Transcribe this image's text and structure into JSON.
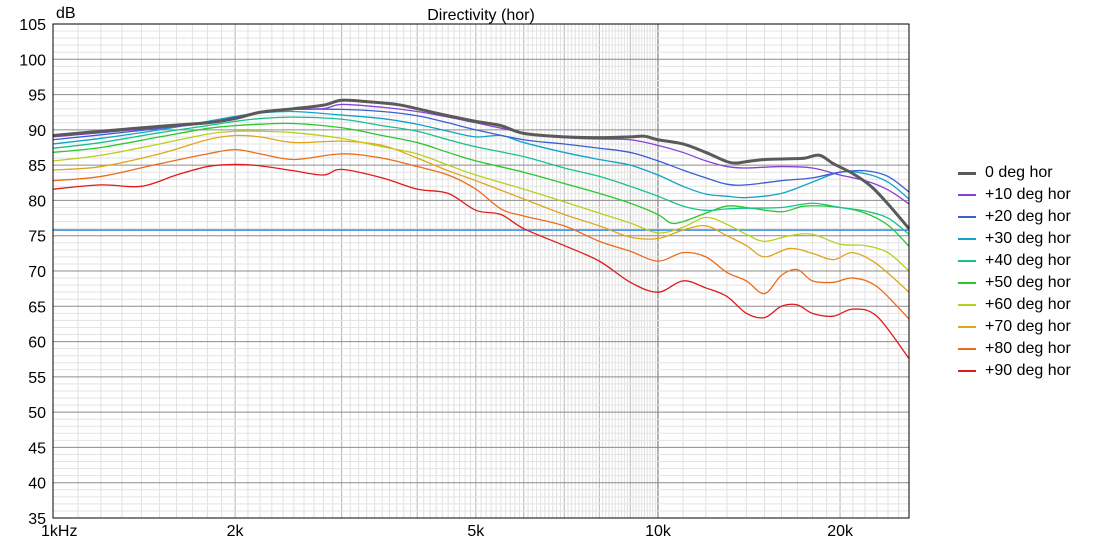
{
  "chart_data": {
    "type": "line",
    "title": "Directivity (hor)",
    "ylabel": "dB",
    "xscale": "log",
    "xlim": [
      1000,
      26000
    ],
    "ylim": [
      35,
      105
    ],
    "yticks": [
      35,
      40,
      45,
      50,
      55,
      60,
      65,
      70,
      75,
      80,
      85,
      90,
      95,
      100,
      105
    ],
    "xtick_labels": [
      {
        "value": 1000,
        "label": "1kHz"
      },
      {
        "value": 2000,
        "label": "2k"
      },
      {
        "value": 5000,
        "label": "5k"
      },
      {
        "value": 10000,
        "label": "10k"
      },
      {
        "value": 20000,
        "label": "20k"
      }
    ],
    "grid": true,
    "legend_position": "right",
    "reference_line": {
      "y": 75.8,
      "color": "#1f7fd6"
    },
    "series": [
      {
        "name": "0 deg hor",
        "color": "#5a5a5a",
        "width": 3,
        "points": [
          [
            1000,
            89.2
          ],
          [
            1200,
            89.8
          ],
          [
            1500,
            90.5
          ],
          [
            1800,
            91.0
          ],
          [
            2000,
            91.6
          ],
          [
            2200,
            92.5
          ],
          [
            2500,
            93.0
          ],
          [
            2800,
            93.5
          ],
          [
            3000,
            94.2
          ],
          [
            3300,
            94.0
          ],
          [
            3700,
            93.6
          ],
          [
            4000,
            93.0
          ],
          [
            4500,
            92.0
          ],
          [
            5000,
            91.2
          ],
          [
            5500,
            90.6
          ],
          [
            6000,
            89.5
          ],
          [
            7000,
            89.0
          ],
          [
            8000,
            88.9
          ],
          [
            9000,
            89.0
          ],
          [
            9500,
            89.1
          ],
          [
            10000,
            88.6
          ],
          [
            11000,
            88.0
          ],
          [
            12000,
            86.8
          ],
          [
            13000,
            85.5
          ],
          [
            13500,
            85.3
          ],
          [
            14000,
            85.5
          ],
          [
            15000,
            85.8
          ],
          [
            16500,
            85.9
          ],
          [
            17500,
            86.0
          ],
          [
            18500,
            86.4
          ],
          [
            19500,
            85.2
          ],
          [
            21000,
            83.8
          ],
          [
            22500,
            82.0
          ],
          [
            24000,
            79.5
          ],
          [
            26000,
            76.0
          ]
        ]
      },
      {
        "name": "+10 deg hor",
        "color": "#8b3fd6",
        "width": 1.3,
        "points": [
          [
            1000,
            89.0
          ],
          [
            1200,
            89.6
          ],
          [
            1500,
            90.3
          ],
          [
            1800,
            90.9
          ],
          [
            2000,
            91.5
          ],
          [
            2200,
            92.4
          ],
          [
            2500,
            92.9
          ],
          [
            2800,
            93.0
          ],
          [
            3000,
            93.6
          ],
          [
            3500,
            93.2
          ],
          [
            4000,
            92.6
          ],
          [
            4500,
            91.8
          ],
          [
            5000,
            91.0
          ],
          [
            6000,
            89.6
          ],
          [
            7000,
            88.9
          ],
          [
            8000,
            88.7
          ],
          [
            9000,
            88.6
          ],
          [
            10000,
            87.8
          ],
          [
            11000,
            86.8
          ],
          [
            12000,
            85.6
          ],
          [
            13000,
            84.8
          ],
          [
            14000,
            84.6
          ],
          [
            16000,
            84.8
          ],
          [
            18000,
            84.6
          ],
          [
            20000,
            83.6
          ],
          [
            22000,
            82.8
          ],
          [
            24000,
            81.5
          ],
          [
            26000,
            79.5
          ]
        ]
      },
      {
        "name": "+20 deg hor",
        "color": "#3a5fd0",
        "width": 1.3,
        "points": [
          [
            1000,
            88.6
          ],
          [
            1200,
            89.3
          ],
          [
            1500,
            90.2
          ],
          [
            1800,
            91.0
          ],
          [
            2000,
            91.8
          ],
          [
            2200,
            92.5
          ],
          [
            2500,
            92.9
          ],
          [
            3000,
            92.9
          ],
          [
            3500,
            92.6
          ],
          [
            4000,
            92.0
          ],
          [
            4500,
            91.0
          ],
          [
            5000,
            90.0
          ],
          [
            6000,
            88.6
          ],
          [
            7000,
            88.0
          ],
          [
            8000,
            87.4
          ],
          [
            9000,
            86.8
          ],
          [
            10000,
            85.6
          ],
          [
            11000,
            84.3
          ],
          [
            12000,
            83.2
          ],
          [
            13000,
            82.3
          ],
          [
            14000,
            82.2
          ],
          [
            16000,
            82.8
          ],
          [
            18000,
            83.2
          ],
          [
            20000,
            84.0
          ],
          [
            22000,
            84.2
          ],
          [
            24000,
            83.4
          ],
          [
            26000,
            81.2
          ]
        ]
      },
      {
        "name": "+30 deg hor",
        "color": "#11a3c9",
        "width": 1.3,
        "points": [
          [
            1000,
            88.0
          ],
          [
            1200,
            88.8
          ],
          [
            1500,
            90.0
          ],
          [
            1800,
            91.2
          ],
          [
            2000,
            91.9
          ],
          [
            2200,
            92.4
          ],
          [
            2500,
            92.6
          ],
          [
            3000,
            92.1
          ],
          [
            3500,
            91.6
          ],
          [
            4000,
            90.8
          ],
          [
            4500,
            89.8
          ],
          [
            5000,
            89.0
          ],
          [
            5500,
            89.2
          ],
          [
            6000,
            88.2
          ],
          [
            7000,
            86.8
          ],
          [
            8000,
            85.8
          ],
          [
            9000,
            85.0
          ],
          [
            10000,
            83.6
          ],
          [
            11000,
            82.0
          ],
          [
            12000,
            80.9
          ],
          [
            13000,
            80.6
          ],
          [
            14000,
            80.4
          ],
          [
            16000,
            81.0
          ],
          [
            18000,
            82.6
          ],
          [
            20000,
            84.0
          ],
          [
            22000,
            83.8
          ],
          [
            24000,
            82.6
          ],
          [
            26000,
            80.2
          ]
        ]
      },
      {
        "name": "+40 deg hor",
        "color": "#16c28c",
        "width": 1.3,
        "points": [
          [
            1000,
            87.4
          ],
          [
            1200,
            88.2
          ],
          [
            1500,
            89.6
          ],
          [
            1800,
            90.6
          ],
          [
            2000,
            91.2
          ],
          [
            2200,
            91.6
          ],
          [
            2500,
            91.8
          ],
          [
            3000,
            91.5
          ],
          [
            3500,
            90.6
          ],
          [
            4000,
            89.8
          ],
          [
            4500,
            88.6
          ],
          [
            5000,
            87.6
          ],
          [
            6000,
            86.2
          ],
          [
            7000,
            84.6
          ],
          [
            8000,
            83.4
          ],
          [
            9000,
            82.0
          ],
          [
            10000,
            80.6
          ],
          [
            11000,
            79.2
          ],
          [
            12000,
            78.6
          ],
          [
            13000,
            78.8
          ],
          [
            14000,
            78.9
          ],
          [
            16000,
            79.0
          ],
          [
            18000,
            79.6
          ],
          [
            20000,
            79.0
          ],
          [
            22000,
            78.5
          ],
          [
            24000,
            77.5
          ],
          [
            26000,
            75.2
          ]
        ]
      },
      {
        "name": "+50 deg hor",
        "color": "#2cc62c",
        "width": 1.3,
        "points": [
          [
            1000,
            86.8
          ],
          [
            1200,
            87.5
          ],
          [
            1500,
            89.0
          ],
          [
            1800,
            90.2
          ],
          [
            2000,
            90.6
          ],
          [
            2200,
            90.8
          ],
          [
            2500,
            90.9
          ],
          [
            3000,
            90.3
          ],
          [
            3500,
            89.2
          ],
          [
            4000,
            88.2
          ],
          [
            4500,
            86.8
          ],
          [
            5000,
            85.6
          ],
          [
            6000,
            84.0
          ],
          [
            7000,
            82.4
          ],
          [
            8000,
            81.0
          ],
          [
            9000,
            79.6
          ],
          [
            10000,
            78.0
          ],
          [
            10500,
            76.8
          ],
          [
            11000,
            77.0
          ],
          [
            12000,
            78.2
          ],
          [
            13000,
            79.2
          ],
          [
            14000,
            79.0
          ],
          [
            16000,
            78.4
          ],
          [
            17500,
            79.2
          ],
          [
            20000,
            79.0
          ],
          [
            22000,
            78.2
          ],
          [
            24000,
            76.5
          ],
          [
            26000,
            73.5
          ]
        ]
      },
      {
        "name": "+60 deg hor",
        "color": "#b8cf1e",
        "width": 1.3,
        "points": [
          [
            1000,
            85.6
          ],
          [
            1200,
            86.4
          ],
          [
            1500,
            88.0
          ],
          [
            1800,
            89.4
          ],
          [
            2000,
            89.8
          ],
          [
            2200,
            89.8
          ],
          [
            2500,
            89.6
          ],
          [
            3000,
            88.8
          ],
          [
            3500,
            87.6
          ],
          [
            4000,
            86.6
          ],
          [
            4500,
            85.0
          ],
          [
            5000,
            83.6
          ],
          [
            6000,
            81.6
          ],
          [
            7000,
            79.8
          ],
          [
            8000,
            78.2
          ],
          [
            9000,
            76.8
          ],
          [
            10000,
            75.4
          ],
          [
            11000,
            76.2
          ],
          [
            12000,
            77.6
          ],
          [
            13000,
            76.6
          ],
          [
            14000,
            75.2
          ],
          [
            15000,
            74.2
          ],
          [
            16500,
            75.0
          ],
          [
            18000,
            75.2
          ],
          [
            20000,
            73.8
          ],
          [
            22000,
            73.6
          ],
          [
            24000,
            72.6
          ],
          [
            26000,
            70.0
          ]
        ]
      },
      {
        "name": "+70 deg hor",
        "color": "#e0a51c",
        "width": 1.3,
        "points": [
          [
            1000,
            84.3
          ],
          [
            1200,
            84.8
          ],
          [
            1500,
            86.6
          ],
          [
            1800,
            88.6
          ],
          [
            2000,
            89.2
          ],
          [
            2200,
            89.0
          ],
          [
            2500,
            88.2
          ],
          [
            3000,
            88.4
          ],
          [
            3500,
            87.8
          ],
          [
            4000,
            86.0
          ],
          [
            4500,
            84.2
          ],
          [
            5000,
            82.8
          ],
          [
            6000,
            80.2
          ],
          [
            7000,
            78.0
          ],
          [
            8000,
            76.4
          ],
          [
            9000,
            74.8
          ],
          [
            10000,
            74.6
          ],
          [
            11000,
            75.8
          ],
          [
            12000,
            76.4
          ],
          [
            13000,
            75.0
          ],
          [
            14000,
            73.6
          ],
          [
            15000,
            72.0
          ],
          [
            16500,
            73.2
          ],
          [
            18000,
            72.5
          ],
          [
            19500,
            71.6
          ],
          [
            21000,
            72.6
          ],
          [
            23000,
            71.0
          ],
          [
            26000,
            67.0
          ]
        ]
      },
      {
        "name": "+80 deg hor",
        "color": "#ec6b1c",
        "width": 1.3,
        "points": [
          [
            1000,
            82.8
          ],
          [
            1200,
            83.4
          ],
          [
            1500,
            85.2
          ],
          [
            1800,
            86.6
          ],
          [
            2000,
            87.2
          ],
          [
            2200,
            86.6
          ],
          [
            2500,
            85.8
          ],
          [
            3000,
            86.6
          ],
          [
            3500,
            86.0
          ],
          [
            4000,
            84.8
          ],
          [
            4500,
            83.6
          ],
          [
            5000,
            81.6
          ],
          [
            5500,
            78.8
          ],
          [
            6000,
            77.8
          ],
          [
            7000,
            76.4
          ],
          [
            8000,
            74.2
          ],
          [
            9000,
            72.8
          ],
          [
            10000,
            71.4
          ],
          [
            11000,
            72.6
          ],
          [
            12000,
            72.0
          ],
          [
            13000,
            69.8
          ],
          [
            14000,
            68.6
          ],
          [
            15000,
            66.8
          ],
          [
            16000,
            69.4
          ],
          [
            17000,
            70.2
          ],
          [
            18000,
            68.6
          ],
          [
            19500,
            68.4
          ],
          [
            21000,
            69.0
          ],
          [
            23000,
            67.8
          ],
          [
            26000,
            63.2
          ]
        ]
      },
      {
        "name": "+90 deg hor",
        "color": "#e11a1a",
        "width": 1.3,
        "points": [
          [
            1000,
            81.6
          ],
          [
            1200,
            82.2
          ],
          [
            1400,
            82.0
          ],
          [
            1600,
            83.6
          ],
          [
            1800,
            84.8
          ],
          [
            2000,
            85.1
          ],
          [
            2200,
            84.9
          ],
          [
            2500,
            84.2
          ],
          [
            2800,
            83.6
          ],
          [
            3000,
            84.4
          ],
          [
            3500,
            83.2
          ],
          [
            4000,
            81.6
          ],
          [
            4500,
            81.0
          ],
          [
            5000,
            78.6
          ],
          [
            5500,
            78.0
          ],
          [
            6000,
            76.0
          ],
          [
            7000,
            73.6
          ],
          [
            8000,
            71.4
          ],
          [
            9000,
            68.4
          ],
          [
            10000,
            67.0
          ],
          [
            11000,
            68.6
          ],
          [
            12000,
            67.6
          ],
          [
            13000,
            66.4
          ],
          [
            14000,
            64.0
          ],
          [
            15000,
            63.4
          ],
          [
            16000,
            65.0
          ],
          [
            17000,
            65.2
          ],
          [
            18000,
            64.0
          ],
          [
            19500,
            63.6
          ],
          [
            21000,
            64.6
          ],
          [
            23000,
            63.6
          ],
          [
            26000,
            57.6
          ]
        ]
      }
    ]
  }
}
